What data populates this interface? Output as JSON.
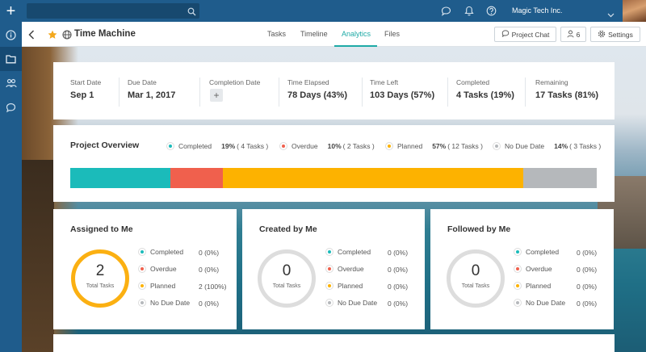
{
  "topbar": {
    "org_name": "Magic Tech Inc.",
    "icons": [
      "search-icon",
      "chat-icon",
      "bell-icon",
      "help-icon",
      "chevron-down-icon"
    ]
  },
  "rail": {
    "icons": [
      "plus-icon",
      "info-icon",
      "folder-icon",
      "people-icon",
      "chat-icon"
    ]
  },
  "header": {
    "title": "Time Machine",
    "tabs": [
      {
        "label": "Tasks"
      },
      {
        "label": "Timeline"
      },
      {
        "label": "Analytics"
      },
      {
        "label": "Files"
      }
    ],
    "active_tab": "Analytics",
    "buttons": {
      "project_chat": "Project Chat",
      "members_count": "6",
      "settings": "Settings"
    }
  },
  "stats": [
    {
      "label": "Start Date",
      "value": "Sep 1"
    },
    {
      "label": "Due Date",
      "value": "Mar 1, 2017"
    },
    {
      "label": "Completion Date",
      "value": ""
    },
    {
      "label": "Time Elapsed",
      "value": "78 Days (43%)"
    },
    {
      "label": "Time Left",
      "value": "103 Days (57%)"
    },
    {
      "label": "Completed",
      "value": "4 Tasks (19%)"
    },
    {
      "label": "Remaining",
      "value": "17 Tasks (81%)"
    }
  ],
  "overview": {
    "title": "Project Overview",
    "legend": [
      {
        "name": "Completed",
        "percent": "19%",
        "tasks": "( 4 Tasks )",
        "color": "#1bbbba",
        "fraction": 0.19
      },
      {
        "name": "Overdue",
        "percent": "10%",
        "tasks": "( 2 Tasks )",
        "color": "#f0604d",
        "fraction": 0.1
      },
      {
        "name": "Planned",
        "percent": "57%",
        "tasks": "( 12 Tasks )",
        "color": "#fdb200",
        "fraction": 0.57
      },
      {
        "name": "No Due Date",
        "percent": "14%",
        "tasks": "( 3 Tasks )",
        "color": "#b5b8bb",
        "fraction": 0.14
      }
    ]
  },
  "summary_cards": [
    {
      "title": "Assigned to Me",
      "total": "2",
      "total_label": "Total Tasks",
      "rows": [
        {
          "name": "Completed",
          "value": "0 (0%)",
          "color": "#1bbbba"
        },
        {
          "name": "Overdue",
          "value": "0 (0%)",
          "color": "#f0604d"
        },
        {
          "name": "Planned",
          "value": "2 (100%)",
          "color": "#fdb200"
        },
        {
          "name": "No Due Date",
          "value": "0 (0%)",
          "color": "#b5b8bb"
        }
      ]
    },
    {
      "title": "Created by Me",
      "total": "0",
      "total_label": "Total Tasks",
      "rows": [
        {
          "name": "Completed",
          "value": "0 (0%)",
          "color": "#1bbbba"
        },
        {
          "name": "Overdue",
          "value": "0 (0%)",
          "color": "#f0604d"
        },
        {
          "name": "Planned",
          "value": "0 (0%)",
          "color": "#fdb200"
        },
        {
          "name": "No Due Date",
          "value": "0 (0%)",
          "color": "#b5b8bb"
        }
      ]
    },
    {
      "title": "Followed by Me",
      "total": "0",
      "total_label": "Total Tasks",
      "rows": [
        {
          "name": "Completed",
          "value": "0 (0%)",
          "color": "#1bbbba"
        },
        {
          "name": "Overdue",
          "value": "0 (0%)",
          "color": "#f0604d"
        },
        {
          "name": "Planned",
          "value": "0 (0%)",
          "color": "#fdb200"
        },
        {
          "name": "No Due Date",
          "value": "0 (0%)",
          "color": "#b5b8bb"
        }
      ]
    }
  ]
}
